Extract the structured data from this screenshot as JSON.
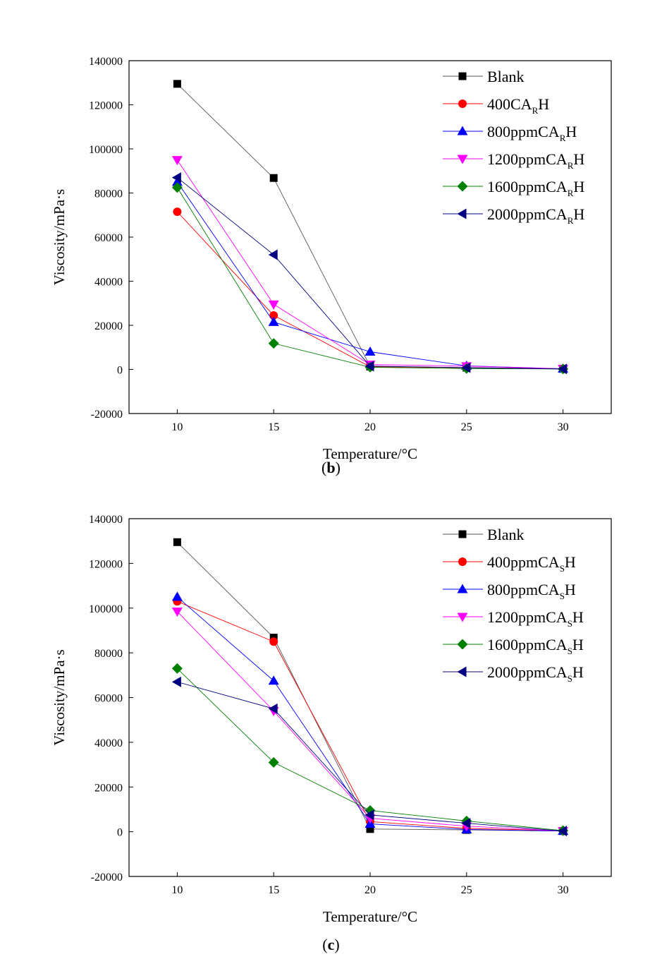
{
  "chart_data": [
    {
      "type": "line",
      "panel": "(b)",
      "panel_letter": "b",
      "xlabel": "Temperature/°C",
      "ylabel": "Viscosity/mPa·s",
      "xlim": [
        7.5,
        32.5
      ],
      "ylim": [
        -20000,
        140000
      ],
      "x_ticks": [
        10,
        15,
        20,
        25,
        30
      ],
      "y_ticks": [
        -20000,
        0,
        20000,
        40000,
        60000,
        80000,
        100000,
        120000,
        140000
      ],
      "x": [
        10,
        15,
        20,
        25,
        30
      ],
      "grid": false,
      "legend_position": "top-right",
      "series": [
        {
          "name": "Blank",
          "legend": {
            "pre": "Blank",
            "sub": "",
            "post": ""
          },
          "color": "#000000",
          "line_color": "#555555",
          "marker": "square",
          "values": [
            129500,
            86800,
            1300,
            800,
            300
          ]
        },
        {
          "name": "400CARH",
          "legend": {
            "pre": "400CA",
            "sub": "R",
            "post": "H"
          },
          "color": "#ff0000",
          "line_color": "#ff0000",
          "marker": "circle",
          "values": [
            71500,
            24500,
            1200,
            800,
            300
          ]
        },
        {
          "name": "800ppmCARH",
          "legend": {
            "pre": "800ppmCA",
            "sub": "R",
            "post": "H"
          },
          "color": "#0000ff",
          "line_color": "#0000ff",
          "marker": "triangle-up",
          "values": [
            85000,
            21500,
            8000,
            1600,
            300
          ]
        },
        {
          "name": "1200ppmCARH",
          "legend": {
            "pre": "1200ppmCA",
            "sub": "R",
            "post": "H"
          },
          "color": "#ff00ff",
          "line_color": "#ff00ff",
          "marker": "triangle-down",
          "values": [
            95000,
            29500,
            2200,
            1500,
            300
          ]
        },
        {
          "name": "1600ppmCARH",
          "legend": {
            "pre": "1600ppmCA",
            "sub": "R",
            "post": "H"
          },
          "color": "#008000",
          "line_color": "#008000",
          "marker": "diamond",
          "values": [
            82500,
            11800,
            1000,
            400,
            200
          ]
        },
        {
          "name": "2000ppmCARH",
          "legend": {
            "pre": "2000ppmCA",
            "sub": "R",
            "post": "H"
          },
          "color": "#000080",
          "line_color": "#000080",
          "marker": "triangle-left",
          "values": [
            87000,
            52000,
            1500,
            800,
            200
          ]
        }
      ]
    },
    {
      "type": "line",
      "panel": "(c)",
      "panel_letter": "c",
      "xlabel": "Temperature/°C",
      "ylabel": "Viscosity/mPa·s",
      "xlim": [
        7.5,
        32.5
      ],
      "ylim": [
        -20000,
        140000
      ],
      "x_ticks": [
        10,
        15,
        20,
        25,
        30
      ],
      "y_ticks": [
        -20000,
        0,
        20000,
        40000,
        60000,
        80000,
        100000,
        120000,
        140000
      ],
      "x": [
        10,
        15,
        20,
        25,
        30
      ],
      "grid": false,
      "legend_position": "top-right",
      "series": [
        {
          "name": "Blank",
          "legend": {
            "pre": "Blank",
            "sub": "",
            "post": ""
          },
          "color": "#000000",
          "line_color": "#555555",
          "marker": "square",
          "values": [
            129500,
            86800,
            1200,
            800,
            300
          ]
        },
        {
          "name": "400ppmCASH",
          "legend": {
            "pre": "400ppmCA",
            "sub": "S",
            "post": "H"
          },
          "color": "#ff0000",
          "line_color": "#ff0000",
          "marker": "circle",
          "values": [
            103000,
            85000,
            4500,
            1500,
            400
          ]
        },
        {
          "name": "800ppmCASH",
          "legend": {
            "pre": "800ppmCA",
            "sub": "S",
            "post": "H"
          },
          "color": "#0000ff",
          "line_color": "#0000ff",
          "marker": "triangle-up",
          "values": [
            105000,
            67500,
            3500,
            1000,
            300
          ]
        },
        {
          "name": "1200ppmCASH",
          "legend": {
            "pre": "1200ppmCA",
            "sub": "S",
            "post": "H"
          },
          "color": "#ff00ff",
          "line_color": "#ff00ff",
          "marker": "triangle-down",
          "values": [
            98500,
            54000,
            6000,
            2500,
            300
          ]
        },
        {
          "name": "1600ppmCASH",
          "legend": {
            "pre": "1600ppmCA",
            "sub": "S",
            "post": "H"
          },
          "color": "#008000",
          "line_color": "#008000",
          "marker": "diamond",
          "values": [
            73000,
            31000,
            9500,
            4800,
            500
          ]
        },
        {
          "name": "2000ppmCASH",
          "legend": {
            "pre": "2000ppmCA",
            "sub": "S",
            "post": "H"
          },
          "color": "#000080",
          "line_color": "#000080",
          "marker": "triangle-left",
          "values": [
            67000,
            55000,
            7500,
            3800,
            300
          ]
        }
      ]
    }
  ]
}
